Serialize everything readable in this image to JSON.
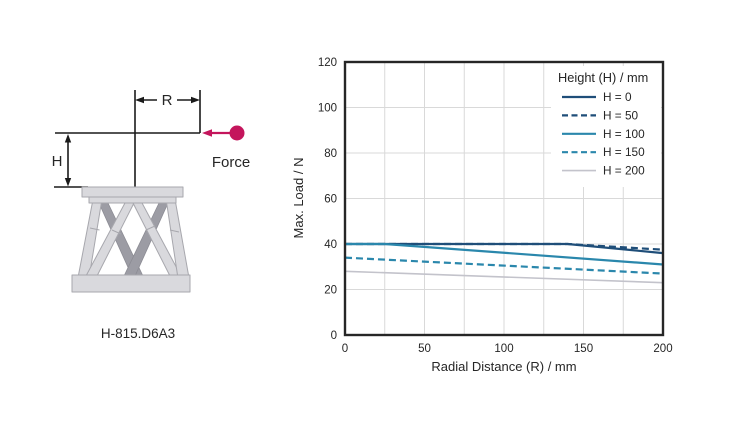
{
  "diagram": {
    "r_label": "R",
    "h_label": "H",
    "force_label": "Force",
    "product_label": "H-815.D6A3",
    "accent_color": "#c4155c",
    "line_color": "#1a1a1a",
    "body_light": "#d9d9dd",
    "body_dark": "#9c9ca4"
  },
  "chart_data": {
    "type": "line",
    "title": "",
    "xlabel": "Radial Distance (R) / mm",
    "ylabel": "Max. Load / N",
    "xlim": [
      0,
      200
    ],
    "ylim": [
      0,
      120
    ],
    "xticks": [
      0,
      50,
      100,
      150,
      200
    ],
    "yticks": [
      0,
      20,
      40,
      60,
      80,
      100,
      120
    ],
    "x_grid_step": 25,
    "y_grid_step": 20,
    "grid": true,
    "grid_color": "#d9d9d9",
    "border_color": "#262626",
    "legend_title": "Height (H) / mm",
    "legend_position": "top-right-inside",
    "series": [
      {
        "name": "H = 0",
        "color": "#1f4e79",
        "style": "solid",
        "width": 2.2,
        "points": [
          [
            0,
            40
          ],
          [
            140,
            40
          ],
          [
            200,
            36
          ]
        ]
      },
      {
        "name": "H = 50",
        "color": "#1f4e79",
        "style": "dashed",
        "width": 2.2,
        "points": [
          [
            0,
            40
          ],
          [
            140,
            40
          ],
          [
            200,
            37.5
          ]
        ]
      },
      {
        "name": "H = 100",
        "color": "#2a87ac",
        "style": "solid",
        "width": 2.2,
        "points": [
          [
            0,
            40
          ],
          [
            25,
            40
          ],
          [
            200,
            31
          ]
        ]
      },
      {
        "name": "H = 150",
        "color": "#2a87ac",
        "style": "dashed",
        "width": 2.2,
        "points": [
          [
            0,
            34
          ],
          [
            200,
            27
          ]
        ]
      },
      {
        "name": "H = 200",
        "color": "#c3c3cb",
        "style": "solid",
        "width": 1.6,
        "points": [
          [
            0,
            28
          ],
          [
            200,
            23
          ]
        ]
      }
    ]
  }
}
